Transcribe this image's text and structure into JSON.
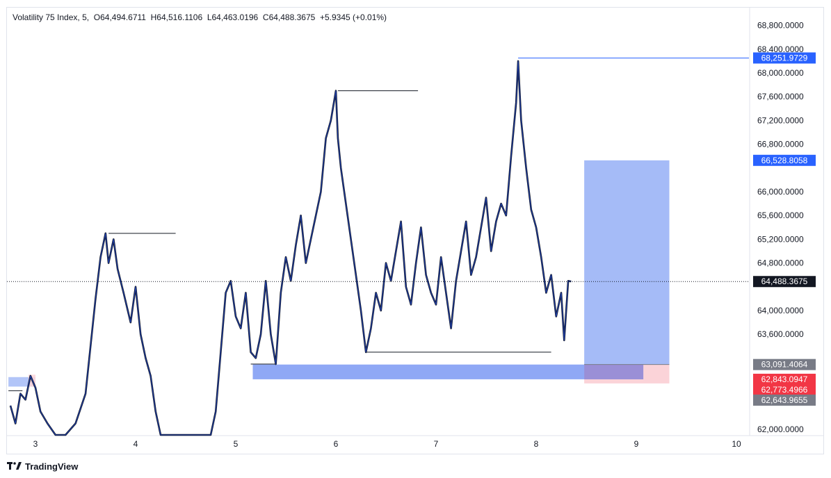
{
  "legend": {
    "symbol": "Volatility 75 Index",
    "interval": "5",
    "open": "O64,494.6711",
    "high": "H64,516.1106",
    "low": "L64,463.0196",
    "close": "C64,488.3675",
    "change": "+5.9345 (+0.01%)"
  },
  "branding": {
    "name": "TradingView"
  },
  "colors": {
    "price_line": "#1e3fae",
    "candle_dark": "#131722",
    "target_zone": "#a5bbf7",
    "stop_zone": "#fbd3d8",
    "demand_zone": "#8fa8f5",
    "blue_label": "#2962ff",
    "red_label": "#f23645",
    "gray_label": "#787b86",
    "black_label": "#131722"
  },
  "chart_data": {
    "type": "line",
    "title": "Volatility 75 Index, 5",
    "x_ticks": [
      "3",
      "4",
      "5",
      "6",
      "7",
      "8",
      "9",
      "10"
    ],
    "y_ticks": [
      "68,800.0000",
      "68,400.0000",
      "68,000.0000",
      "67,600.0000",
      "67,200.0000",
      "66,800.0000",
      "66,000.0000",
      "65,600.0000",
      "65,200.0000",
      "64,800.0000",
      "64,000.0000",
      "63,600.0000",
      "62,000.0000"
    ],
    "y_range": [
      61800,
      69000
    ],
    "x_range": [
      2.73,
      10.47
    ],
    "grid": false,
    "series": [
      {
        "x": [
          2.75,
          2.8,
          2.85,
          2.9,
          2.95,
          3.0,
          3.05,
          3.12,
          3.2,
          3.3,
          3.4,
          3.5,
          3.55,
          3.6,
          3.65,
          3.7,
          3.73,
          3.78,
          3.82,
          3.88,
          3.95,
          4.0,
          4.05,
          4.1,
          4.15,
          4.2,
          4.25,
          4.3,
          4.35,
          4.4,
          4.5,
          4.6,
          4.7,
          4.75,
          4.8,
          4.85,
          4.9,
          4.95,
          5.0,
          5.05,
          5.1,
          5.15,
          5.2,
          5.25,
          5.3,
          5.35,
          5.4,
          5.45,
          5.5,
          5.55,
          5.6,
          5.65,
          5.7,
          5.75,
          5.8,
          5.85,
          5.9,
          5.95,
          6.0,
          6.02,
          6.05,
          6.1,
          6.15,
          6.2,
          6.25,
          6.3,
          6.35,
          6.4,
          6.45,
          6.5,
          6.55,
          6.6,
          6.65,
          6.7,
          6.75,
          6.8,
          6.85,
          6.9,
          6.95,
          7.0,
          7.05,
          7.1,
          7.15,
          7.2,
          7.25,
          7.3,
          7.35,
          7.4,
          7.45,
          7.5,
          7.55,
          7.6,
          7.65,
          7.7,
          7.75,
          7.8,
          7.82,
          7.85,
          7.9,
          7.95,
          8.0,
          8.05,
          8.1,
          8.15,
          8.2,
          8.25,
          8.28,
          8.32,
          8.35
        ],
        "y": [
          62400,
          62100,
          62600,
          62500,
          62900,
          62700,
          62300,
          62100,
          61900,
          61800,
          62100,
          62600,
          63400,
          64200,
          64900,
          65300,
          64800,
          65200,
          64700,
          64300,
          63800,
          64400,
          63600,
          63200,
          62900,
          62300,
          61900,
          61800,
          61600,
          61800,
          61700,
          61800,
          61900,
          61600,
          62300,
          63300,
          64300,
          64500,
          63900,
          63700,
          64300,
          63300,
          63200,
          63600,
          64500,
          63600,
          63100,
          64300,
          64900,
          64500,
          65100,
          65600,
          64800,
          65200,
          65600,
          66000,
          66900,
          67200,
          67700,
          66900,
          66400,
          65800,
          65200,
          64600,
          64000,
          63300,
          63700,
          64300,
          64000,
          64800,
          64500,
          65000,
          65500,
          64400,
          64100,
          64800,
          65400,
          64600,
          64300,
          64100,
          64900,
          64300,
          63700,
          64500,
          65000,
          65500,
          64600,
          64900,
          65400,
          65900,
          65000,
          65500,
          65800,
          65600,
          66600,
          67500,
          68200,
          67200,
          66400,
          65700,
          65400,
          64900,
          64300,
          64600,
          63900,
          64300,
          63500,
          64500,
          64490
        ]
      }
    ],
    "swing_lines": [
      {
        "price": 65300,
        "x_start": 3.73,
        "x_end": 4.4
      },
      {
        "price": 67700,
        "x_start": 6.02,
        "x_end": 6.82
      },
      {
        "price": 68252,
        "x_start": 7.82,
        "x_end": 10.47
      },
      {
        "price": 63300,
        "x_start": 6.3,
        "x_end": 8.15
      },
      {
        "price": 63100,
        "x_start": 5.15,
        "x_end": 5.4
      },
      {
        "price": 62650,
        "x_start": 2.73,
        "x_end": 2.87
      }
    ],
    "current_price": 64488.3675,
    "zones": [
      {
        "kind": "target",
        "x_start": 8.48,
        "x_end": 9.33,
        "price_top": 66528.8058,
        "price_bottom": 63091.4064
      },
      {
        "kind": "stop",
        "x_start": 8.48,
        "x_end": 9.33,
        "price_top": 63091.4064,
        "price_bottom": 62773.4966
      },
      {
        "kind": "demand",
        "x_start": 5.17,
        "x_end": 9.07,
        "price_top": 63091.4064,
        "price_bottom": 62843.0947
      },
      {
        "kind": "demand_small",
        "x_start": 2.73,
        "x_end": 3.0,
        "price_top": 62880,
        "price_bottom": 62720
      },
      {
        "kind": "stop_small",
        "x_start": 2.93,
        "x_end": 3.0,
        "price_top": 62920,
        "price_bottom": 62720
      }
    ],
    "price_labels": [
      {
        "text": "68,251.9729",
        "price": 68251.9729,
        "color": "blue"
      },
      {
        "text": "66,528.8058",
        "price": 66528.8058,
        "color": "blue"
      },
      {
        "text": "64,488.3675",
        "price": 64488.3675,
        "color": "black"
      },
      {
        "text": "63,091.4064",
        "price": 63091.4064,
        "color": "gray"
      },
      {
        "text": "62,843.0947",
        "price": 62843.0947,
        "color": "red"
      },
      {
        "text": "62,773.4966",
        "price": 62773.4966,
        "color": "red"
      },
      {
        "text": "62,643.9655",
        "price": 62643.9655,
        "color": "gray"
      }
    ]
  }
}
